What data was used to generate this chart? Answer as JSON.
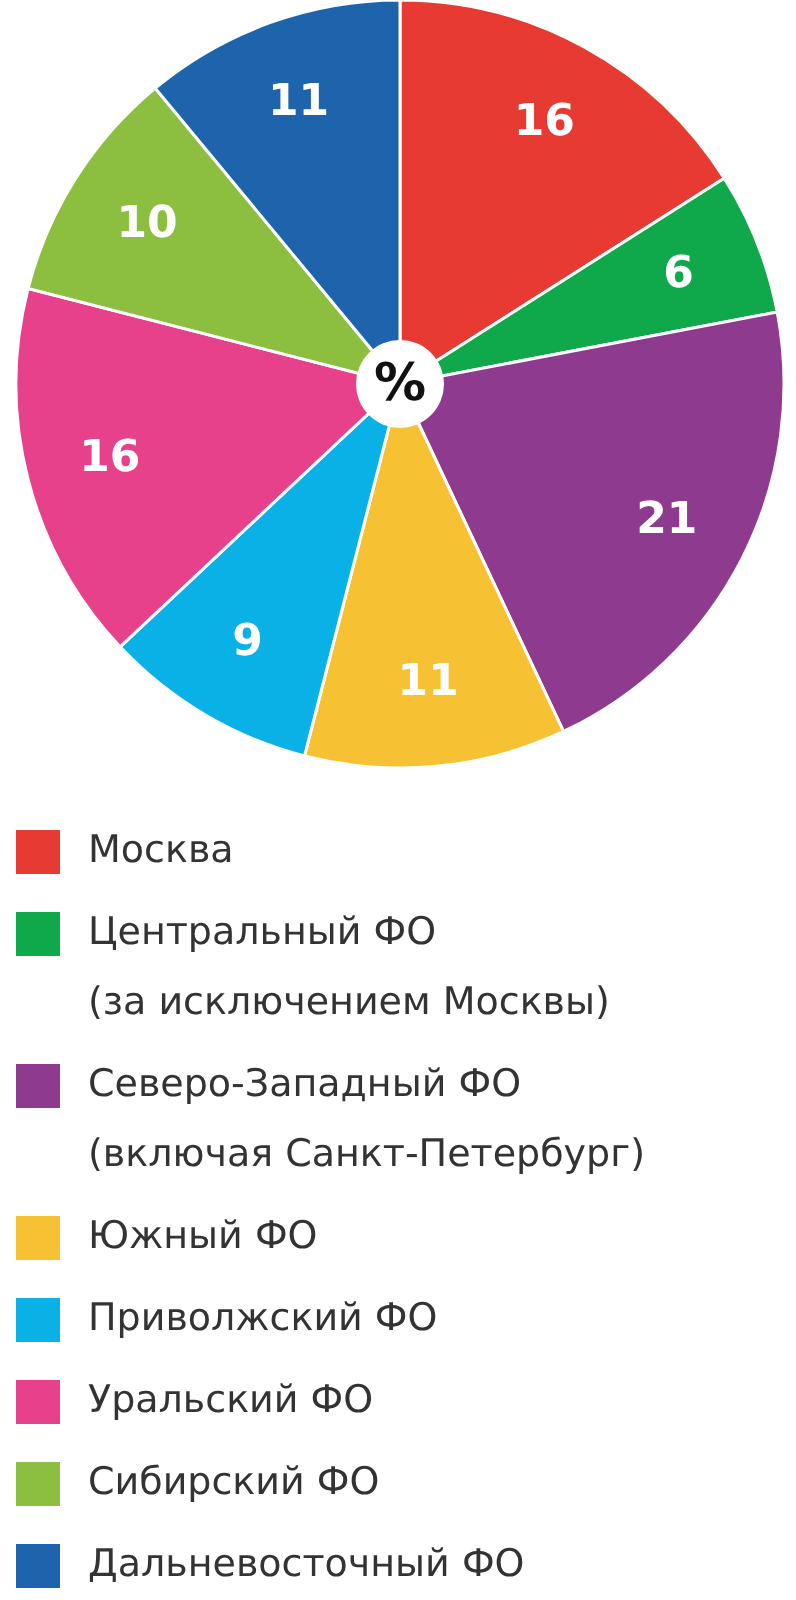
{
  "chart_data": {
    "type": "pie",
    "annotations": [
      "%"
    ],
    "categories": [
      "Москва",
      "Центральный ФО (за исключением Москвы)",
      "Северо-Западный ФО (включая Санкт-Петербург)",
      "Южный ФО",
      "Приволжский ФО",
      "Уральский ФО",
      "Сибирский ФО",
      "Дальневосточный ФО"
    ],
    "values": [
      16,
      6,
      21,
      11,
      9,
      16,
      10,
      11
    ],
    "colors": [
      "#e63a32",
      "#0fa84a",
      "#8e3a8e",
      "#f6c234",
      "#0ab1e6",
      "#e8418c",
      "#8cbf3f",
      "#1d64ad"
    ],
    "data_labels": true,
    "legend": "bottom"
  }
}
